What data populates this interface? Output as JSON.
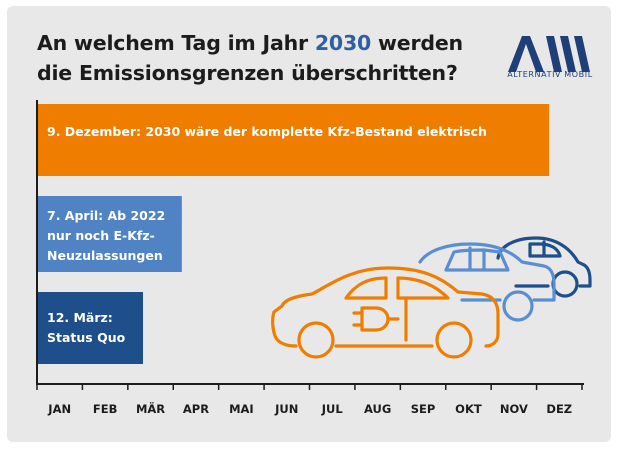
{
  "title": {
    "before": "An welchem Tag im Jahr ",
    "highlight": "2030",
    "after": " werden die Emissionsgrenzen überschritten?"
  },
  "logo": {
    "text": "ALTERNATIV MOBIL"
  },
  "colors": {
    "background": "#e8e8e8",
    "orange": "#ef7d00",
    "light_blue": "#4f83c3",
    "dark_blue": "#1f4f8a",
    "car_light_blue": "#5b8ed0",
    "car_dark_blue": "#1f4f8a",
    "title_highlight": "#2f5f9e"
  },
  "chart_data": {
    "type": "bar",
    "orientation": "horizontal",
    "x_unit": "month",
    "x_ticks": [
      "JAN",
      "FEB",
      "MÄR",
      "APR",
      "MAI",
      "JUN",
      "JUL",
      "AUG",
      "SEP",
      "OKT",
      "NOV",
      "DEZ"
    ],
    "xlim": [
      "Jan 1",
      "Dec 31"
    ],
    "bars": [
      {
        "label": "9. Dezember: 2030 wäre der komplette Kfz-Bestand elektrisch",
        "end_date": "2030-12-09",
        "color": "#ef7d00"
      },
      {
        "label": "7. April: Ab 2022 nur noch E-Kfz-Neuzulassungen",
        "end_date": "2030-04-07",
        "color": "#4f83c3"
      },
      {
        "label": "12. März: Status Quo",
        "end_date": "2030-03-12",
        "color": "#1f4f8a"
      }
    ],
    "grid": false
  }
}
